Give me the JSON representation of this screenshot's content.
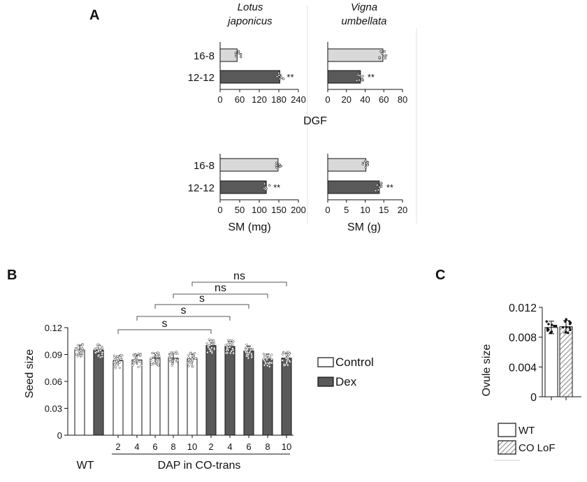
{
  "panel_labels": {
    "a": "A",
    "b": "B",
    "c": "C"
  },
  "colors": {
    "light": "#d9d9d9",
    "dark": "#595959",
    "white": "#ffffff",
    "hatch": "#9a9a9a"
  },
  "chart_data": [
    {
      "id": "A",
      "type": "bar",
      "orientation": "horizontal",
      "species": [
        {
          "text": "Lotus",
          "text2": "japonicus"
        },
        {
          "text": "Vigna",
          "text2": "umbellata"
        }
      ],
      "categories": [
        "16-8",
        "12-12"
      ],
      "rows": [
        {
          "xlabel": "DGF",
          "subplots": [
            {
              "xlim": [
                0,
                240
              ],
              "ticks": [
                "0",
                "60",
                "120",
                "180",
                "240"
              ],
              "values": [
                52,
                183
              ],
              "sig": [
                "",
                "**"
              ]
            },
            {
              "xlim": [
                0,
                80
              ],
              "ticks": [
                "0",
                "20",
                "40",
                "60",
                "80"
              ],
              "values": [
                59,
                35
              ],
              "sig": [
                "",
                "**"
              ]
            }
          ]
        },
        {
          "xlabel": "",
          "subplots": [
            {
              "xlabel": "SM (mg)",
              "xlim": [
                0,
                200
              ],
              "ticks": [
                "0",
                "50",
                "100",
                "150",
                "200"
              ],
              "values": [
                148,
                118
              ],
              "sig": [
                "",
                "**"
              ]
            },
            {
              "xlabel": "SM (g)",
              "xlim": [
                0,
                20
              ],
              "ticks": [
                "0",
                "5",
                "10",
                "15",
                "20"
              ],
              "values": [
                10.2,
                13.8
              ],
              "sig": [
                "",
                "**"
              ]
            }
          ]
        }
      ]
    },
    {
      "id": "B",
      "type": "bar",
      "ylabel": "Seed size",
      "ylim": [
        0,
        0.12
      ],
      "yticks": [
        "0",
        "0.03",
        "0.06",
        "0.09",
        "0.12"
      ],
      "group_label": "WT",
      "xlabel": "DAP in CO-trans",
      "dap_labels": [
        "2",
        "4",
        "6",
        "8",
        "10",
        "2",
        "4",
        "6",
        "8",
        "10"
      ],
      "bars": [
        {
          "series": "Control",
          "value": 0.095
        },
        {
          "series": "Dex",
          "value": 0.095
        },
        {
          "series": "Control",
          "value": 0.083
        },
        {
          "series": "Control",
          "value": 0.084
        },
        {
          "series": "Control",
          "value": 0.086
        },
        {
          "series": "Control",
          "value": 0.086
        },
        {
          "series": "Control",
          "value": 0.085
        },
        {
          "series": "Dex",
          "value": 0.1
        },
        {
          "series": "Dex",
          "value": 0.099
        },
        {
          "series": "Dex",
          "value": 0.094
        },
        {
          "series": "Dex",
          "value": 0.085
        },
        {
          "series": "Dex",
          "value": 0.086
        }
      ],
      "comparisons": [
        {
          "from": 2,
          "to": 7,
          "label": "s"
        },
        {
          "from": 3,
          "to": 8,
          "label": "s"
        },
        {
          "from": 4,
          "to": 9,
          "label": "s"
        },
        {
          "from": 5,
          "to": 10,
          "label": "ns"
        },
        {
          "from": 6,
          "to": 11,
          "label": "ns"
        }
      ],
      "legend": [
        {
          "name": "Control"
        },
        {
          "name": "Dex"
        }
      ]
    },
    {
      "id": "C",
      "type": "bar",
      "ylabel": "Ovule size",
      "ylim": [
        0,
        0.012
      ],
      "yticks": [
        "0",
        "0.004",
        "0.008",
        "0.012"
      ],
      "bars": [
        {
          "series": "WT",
          "value": 0.0093
        },
        {
          "series": "CO LoF",
          "value": 0.0094
        }
      ],
      "legend": [
        {
          "name": "WT"
        },
        {
          "name": "CO LoF"
        }
      ]
    }
  ]
}
